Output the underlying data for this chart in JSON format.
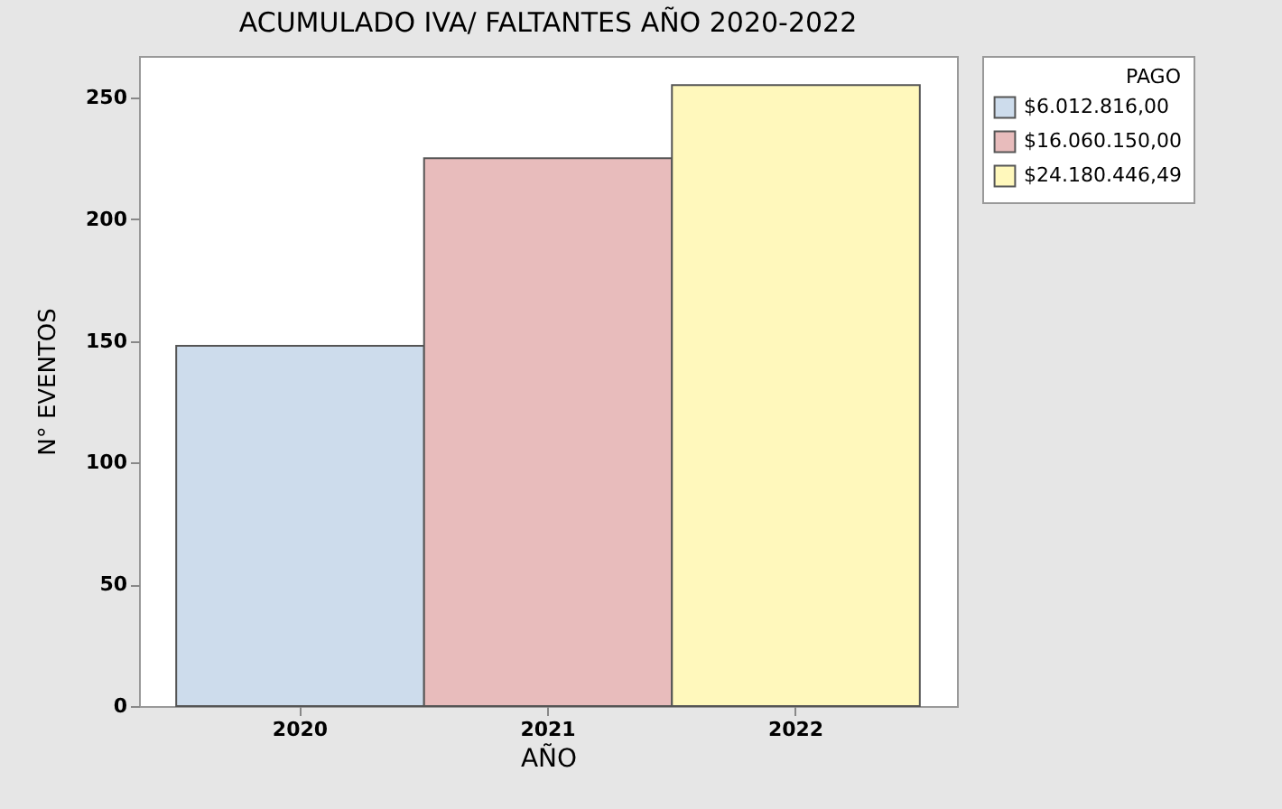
{
  "chart_data": {
    "type": "bar",
    "title": "ACUMULADO IVA/ FALTANTES AÑO 2020-2022",
    "xlabel": "AÑO",
    "ylabel": "N° EVENTOS",
    "legend_title": "PAGO",
    "categories": [
      "2020",
      "2021",
      "2022"
    ],
    "series": [
      {
        "name": "$6.012.816,00",
        "color": "#cddcec",
        "values": [
          148,
          null,
          null
        ]
      },
      {
        "name": "$16.060.150,00",
        "color": "#e8bcbc",
        "values": [
          null,
          225,
          null
        ]
      },
      {
        "name": "$24.180.446,49",
        "color": "#fff8bc",
        "values": [
          null,
          null,
          255
        ]
      }
    ],
    "ylim": [
      0,
      267
    ],
    "yticks": [
      0,
      50,
      100,
      150,
      200,
      250
    ],
    "grid": false,
    "legend": "top right"
  }
}
